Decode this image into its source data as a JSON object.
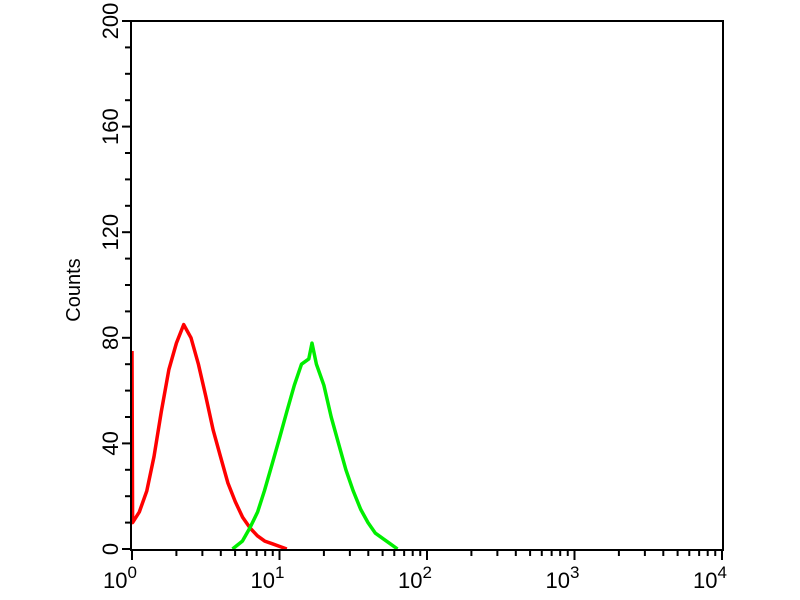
{
  "chart_data": {
    "type": "line",
    "title": "",
    "xlabel": "",
    "ylabel": "Counts",
    "x_scale": "log",
    "xlim": [
      1,
      10000
    ],
    "ylim": [
      0,
      200
    ],
    "grid": false,
    "legend": "none",
    "y_ticks": [
      "0",
      "40",
      "80",
      "120",
      "160",
      "200"
    ],
    "y_tick_values": [
      0,
      40,
      80,
      120,
      160,
      200
    ],
    "x_ticks": [
      {
        "base": "10",
        "exp": "0",
        "value": 1
      },
      {
        "base": "10",
        "exp": "1",
        "value": 10
      },
      {
        "base": "10",
        "exp": "2",
        "value": 100
      },
      {
        "base": "10",
        "exp": "3",
        "value": 1000
      },
      {
        "base": "10",
        "exp": "4",
        "value": 10000
      }
    ],
    "series": [
      {
        "color": "#ff0000",
        "points": [
          [
            1.0,
            75
          ],
          [
            1.01,
            10
          ],
          [
            1.12,
            14
          ],
          [
            1.26,
            22
          ],
          [
            1.41,
            35
          ],
          [
            1.58,
            52
          ],
          [
            1.78,
            68
          ],
          [
            2.0,
            78
          ],
          [
            2.24,
            85
          ],
          [
            2.51,
            80
          ],
          [
            2.82,
            70
          ],
          [
            3.16,
            58
          ],
          [
            3.55,
            45
          ],
          [
            3.98,
            35
          ],
          [
            4.47,
            25
          ],
          [
            5.01,
            18
          ],
          [
            5.62,
            12
          ],
          [
            6.31,
            8
          ],
          [
            7.08,
            5
          ],
          [
            7.94,
            3
          ],
          [
            8.91,
            2
          ],
          [
            10.0,
            1
          ],
          [
            11.2,
            0
          ]
        ]
      },
      {
        "color": "#00ee00",
        "points": [
          [
            4.8,
            0
          ],
          [
            5.6,
            3
          ],
          [
            6.3,
            8
          ],
          [
            7.1,
            14
          ],
          [
            7.9,
            22
          ],
          [
            8.9,
            32
          ],
          [
            10.0,
            42
          ],
          [
            11.2,
            52
          ],
          [
            12.6,
            62
          ],
          [
            14.1,
            70
          ],
          [
            15.8,
            72
          ],
          [
            16.6,
            78
          ],
          [
            17.8,
            70
          ],
          [
            20.0,
            62
          ],
          [
            22.4,
            50
          ],
          [
            25.1,
            40
          ],
          [
            28.2,
            30
          ],
          [
            31.6,
            22
          ],
          [
            35.5,
            15
          ],
          [
            39.8,
            10
          ],
          [
            44.7,
            6
          ],
          [
            50.1,
            4
          ],
          [
            56.2,
            2
          ],
          [
            63.1,
            0
          ]
        ]
      }
    ]
  }
}
